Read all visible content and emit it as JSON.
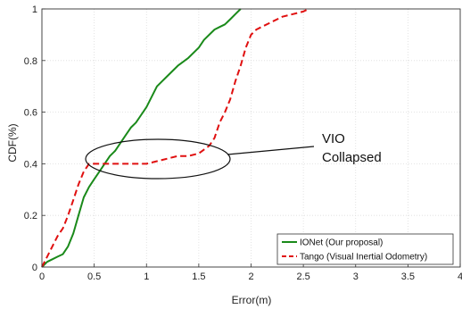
{
  "chart_data": {
    "type": "line",
    "xlabel": "Error(m)",
    "ylabel": "CDF(%)",
    "xlim": [
      0,
      4
    ],
    "ylim": [
      0,
      1
    ],
    "xticks": [
      0,
      0.5,
      1,
      1.5,
      2,
      2.5,
      3,
      3.5,
      4
    ],
    "yticks": [
      0,
      0.2,
      0.4,
      0.6,
      0.8,
      1
    ],
    "grid": true,
    "legend_position": "bottom-right",
    "annotation": {
      "lines": [
        "VIO",
        "Collapsed"
      ]
    },
    "series": [
      {
        "name": "IONet (Our proposal)",
        "color": "#1a8a1a",
        "style": "solid",
        "x": [
          0,
          0.05,
          0.1,
          0.15,
          0.2,
          0.25,
          0.3,
          0.35,
          0.4,
          0.45,
          0.5,
          0.55,
          0.6,
          0.65,
          0.7,
          0.75,
          0.8,
          0.85,
          0.9,
          0.95,
          1.0,
          1.05,
          1.1,
          1.15,
          1.2,
          1.3,
          1.4,
          1.5,
          1.55,
          1.6,
          1.65,
          1.7,
          1.75,
          1.8,
          1.85,
          1.9
        ],
        "y": [
          0,
          0.02,
          0.03,
          0.04,
          0.05,
          0.08,
          0.13,
          0.2,
          0.27,
          0.31,
          0.34,
          0.37,
          0.4,
          0.43,
          0.45,
          0.48,
          0.51,
          0.54,
          0.56,
          0.59,
          0.62,
          0.66,
          0.7,
          0.72,
          0.74,
          0.78,
          0.81,
          0.85,
          0.88,
          0.9,
          0.92,
          0.93,
          0.94,
          0.96,
          0.98,
          1.0
        ]
      },
      {
        "name": "Tango (Visual Inertial Odometry)",
        "color": "#e01010",
        "style": "dashed",
        "x": [
          0,
          0.05,
          0.1,
          0.15,
          0.2,
          0.25,
          0.3,
          0.35,
          0.4,
          0.45,
          0.5,
          0.6,
          0.7,
          0.8,
          0.9,
          1.0,
          1.1,
          1.2,
          1.3,
          1.4,
          1.5,
          1.6,
          1.65,
          1.7,
          1.75,
          1.8,
          1.85,
          1.9,
          1.95,
          2.0,
          2.05,
          2.1,
          2.2,
          2.3,
          2.4,
          2.5,
          2.55
        ],
        "y": [
          0,
          0.04,
          0.08,
          0.12,
          0.15,
          0.2,
          0.26,
          0.32,
          0.37,
          0.4,
          0.4,
          0.4,
          0.4,
          0.4,
          0.4,
          0.4,
          0.41,
          0.42,
          0.43,
          0.43,
          0.44,
          0.47,
          0.5,
          0.56,
          0.6,
          0.65,
          0.72,
          0.78,
          0.85,
          0.9,
          0.92,
          0.93,
          0.95,
          0.97,
          0.98,
          0.99,
          1.0
        ]
      }
    ]
  }
}
